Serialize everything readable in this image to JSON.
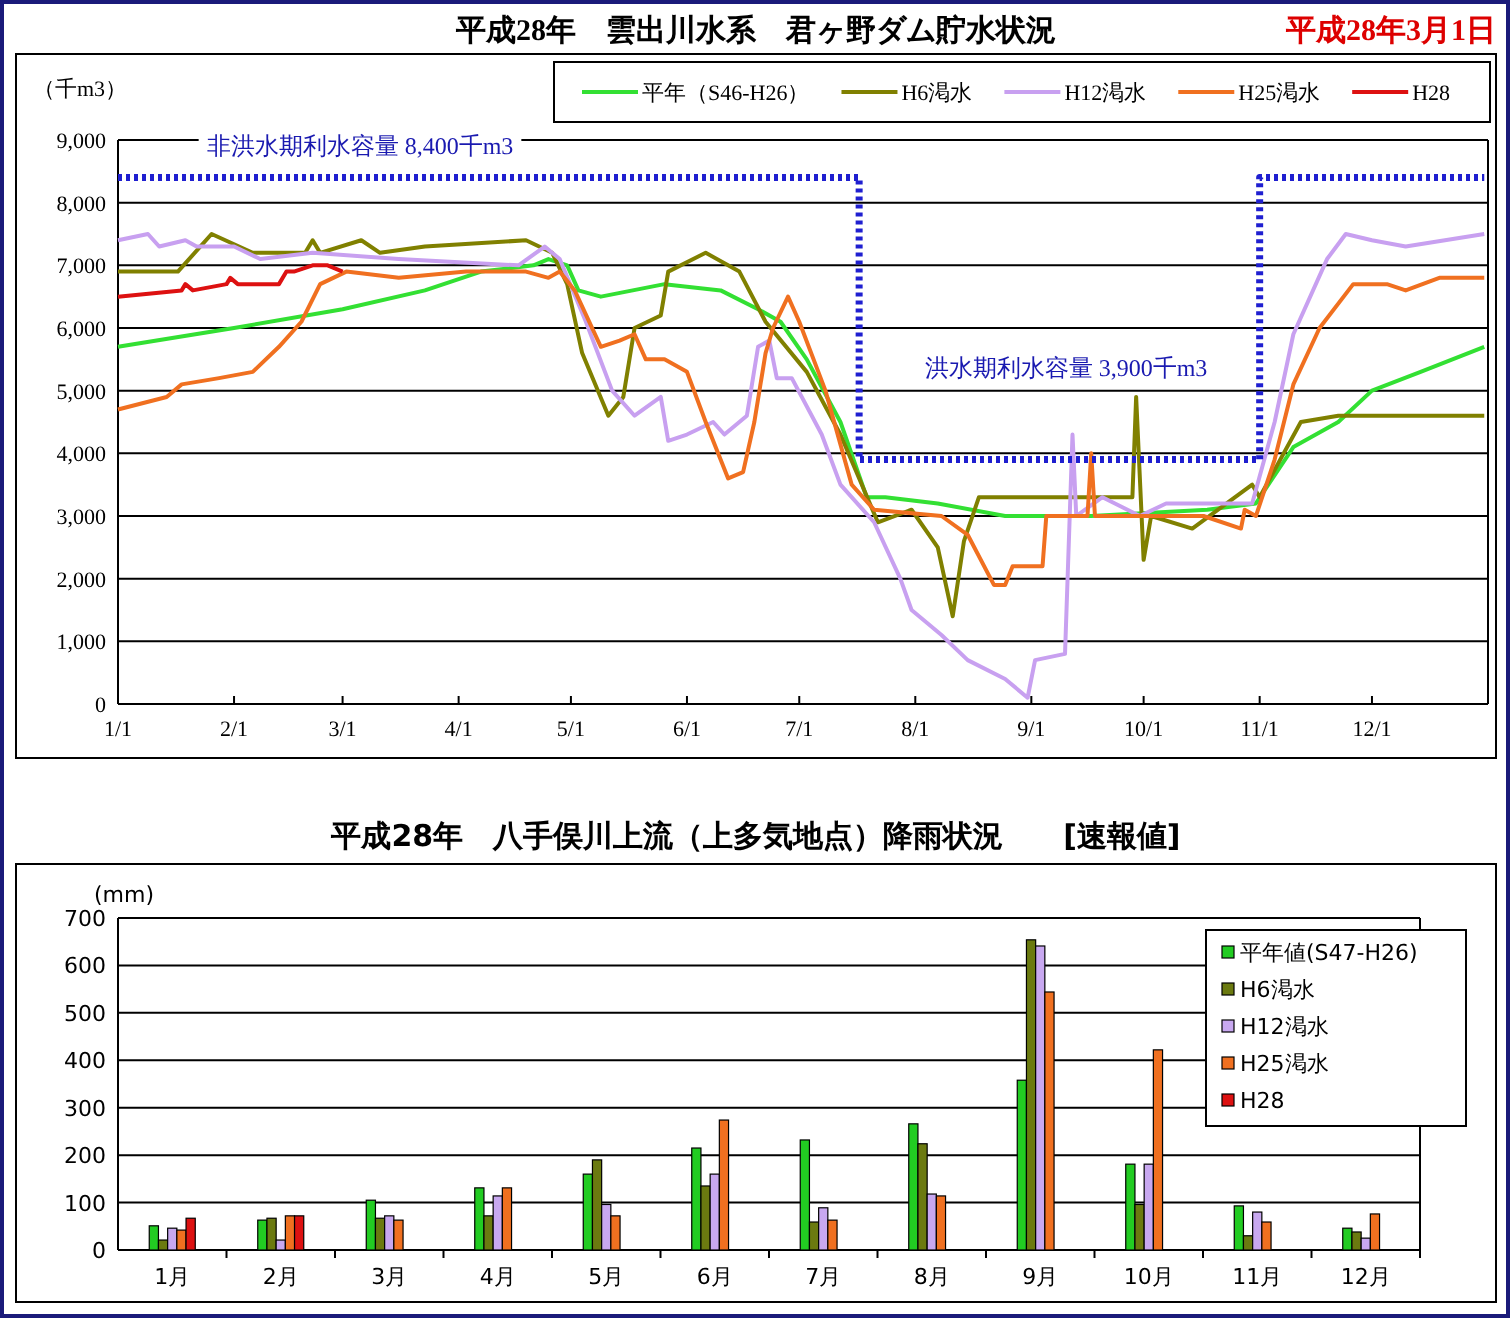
{
  "chart_data": [
    {
      "type": "line",
      "title": "平成28年　雲出川水系　君ヶ野ダム貯水状況",
      "subtitle": "平成28年3月1日",
      "ylabel": "（千m3）",
      "xlim": [
        "--01-01",
        "--12-31"
      ],
      "ylim": [
        0,
        9000
      ],
      "xticks": [
        {
          "value": "--01-01",
          "label": "1/1"
        },
        {
          "value": "--02-01",
          "label": "2/1"
        },
        {
          "value": "--03-01",
          "label": "3/1"
        },
        {
          "value": "--04-01",
          "label": "4/1"
        },
        {
          "value": "--05-01",
          "label": "5/1"
        },
        {
          "value": "--06-01",
          "label": "6/1"
        },
        {
          "value": "--07-01",
          "label": "7/1"
        },
        {
          "value": "--08-01",
          "label": "8/1"
        },
        {
          "value": "--09-01",
          "label": "9/1"
        },
        {
          "value": "--10-01",
          "label": "10/1"
        },
        {
          "value": "--11-01",
          "label": "11/1"
        },
        {
          "value": "--12-01",
          "label": "12/1"
        }
      ],
      "yticks": [
        0,
        {
          "value": 1000,
          "label": "1,000"
        },
        {
          "value": 2000,
          "label": "2,000"
        },
        {
          "value": 3000,
          "label": "3,000"
        },
        {
          "value": 4000,
          "label": "4,000"
        },
        {
          "value": 5000,
          "label": "5,000"
        },
        {
          "value": 6000,
          "label": "6,000"
        },
        {
          "value": 7000,
          "label": "7,000"
        },
        {
          "value": 8000,
          "label": "8,000"
        },
        {
          "value": 9000,
          "label": "9,000"
        }
      ],
      "grid": "y",
      "legend": "top",
      "line_style": "solid",
      "marker": "none",
      "annotations": [
        "非洪水期利水容量 8,400千m3",
        "洪水期利水容量 3,900千m3"
      ],
      "series": [
        {
          "name": "平年（S46-H26）",
          "color": "#33e033",
          "x": [
            "--01-01",
            "--02-01",
            "--03-01",
            "--03-23",
            "--04-07",
            "--04-21",
            "--04-25",
            "--04-30",
            "--05-03",
            "--05-09",
            "--05-26",
            "--06-10",
            "--06-20",
            "--06-26",
            "--07-03",
            "--07-12",
            "--07-19",
            "--07-24",
            "--08-07",
            "--08-25",
            "--09-17",
            "--10-18",
            "--10-31",
            "--11-10",
            "--11-22",
            "--12-01",
            "--12-14",
            "--12-31"
          ],
          "values": [
            5700,
            6000,
            6300,
            6600,
            6900,
            7000,
            7100,
            7000,
            6600,
            6500,
            6700,
            6600,
            6300,
            6100,
            5500,
            4500,
            3300,
            3300,
            3200,
            3000,
            3000,
            3100,
            3200,
            4100,
            4500,
            5000,
            5300,
            5700
          ]
        },
        {
          "name": "H6渇水",
          "color": "#808000",
          "x": [
            "--01-01",
            "--01-17",
            "--01-26",
            "--02-06",
            "--02-20",
            "--02-22",
            "--02-24",
            "--03-06",
            "--03-11",
            "--03-23",
            "--04-19",
            "--04-26",
            "--04-30",
            "--05-04",
            "--05-11",
            "--05-15",
            "--05-18",
            "--05-25",
            "--05-27",
            "--06-06",
            "--06-15",
            "--06-22",
            "--07-03",
            "--07-12",
            "--07-22",
            "--07-31",
            "--08-07",
            "--08-11",
            "--08-14",
            "--08-18",
            "--09-28",
            "--09-29",
            "--10-01",
            "--10-03",
            "--10-14",
            "--10-30",
            "--11-01",
            "--11-12",
            "--11-22",
            "--12-19",
            "--12-31"
          ],
          "values": [
            6900,
            6900,
            7500,
            7200,
            7200,
            7400,
            7200,
            7400,
            7200,
            7300,
            7400,
            7200,
            6700,
            5600,
            4600,
            4900,
            6000,
            6200,
            6900,
            7200,
            6900,
            6100,
            5300,
            4300,
            2900,
            3100,
            2500,
            1400,
            2600,
            3300,
            3300,
            4900,
            2300,
            3000,
            2800,
            3500,
            3300,
            4500,
            4600,
            4600,
            4600
          ]
        },
        {
          "name": "H12渇水",
          "color": "#c8a0f0",
          "x": [
            "--01-01",
            "--01-09",
            "--01-12",
            "--01-19",
            "--01-22",
            "--02-01",
            "--02-08",
            "--02-22",
            "--03-16",
            "--04-17",
            "--04-24",
            "--04-28",
            "--05-05",
            "--05-12",
            "--05-18",
            "--05-25",
            "--05-27",
            "--06-01",
            "--06-08",
            "--06-11",
            "--06-17",
            "--06-20",
            "--06-23",
            "--06-25",
            "--06-29",
            "--07-07",
            "--07-12",
            "--07-21",
            "--07-28",
            "--07-31",
            "--08-08",
            "--08-15",
            "--08-25",
            "--08-31",
            "--09-02",
            "--09-10",
            "--09-12",
            "--09-13",
            "--09-20",
            "--09-30",
            "--10-07",
            "--10-30",
            "--11-05",
            "--11-10",
            "--11-19",
            "--11-24",
            "--12-01",
            "--12-10",
            "--12-31"
          ],
          "values": [
            7400,
            7500,
            7300,
            7400,
            7300,
            7300,
            7100,
            7200,
            7100,
            7000,
            7300,
            7100,
            6100,
            5000,
            4600,
            4900,
            4200,
            4300,
            4500,
            4300,
            4600,
            5700,
            5800,
            5200,
            5200,
            4300,
            3500,
            2900,
            2000,
            1500,
            1100,
            700,
            400,
            100,
            700,
            800,
            4300,
            3000,
            3300,
            3000,
            3200,
            3200,
            4500,
            5900,
            7100,
            7500,
            7400,
            7300,
            7500
          ]
        },
        {
          "name": "H25渇水",
          "color": "#f07020",
          "x": [
            "--01-01",
            "--01-14",
            "--01-18",
            "--01-28",
            "--02-06",
            "--02-13",
            "--02-19",
            "--02-24",
            "--03-02",
            "--03-16",
            "--04-03",
            "--04-19",
            "--04-25",
            "--04-28",
            "--05-02",
            "--05-09",
            "--05-14",
            "--05-18",
            "--05-21",
            "--05-26",
            "--06-01",
            "--06-06",
            "--06-12",
            "--06-16",
            "--06-19",
            "--06-22",
            "--06-24",
            "--06-28",
            "--07-01",
            "--07-08",
            "--07-15",
            "--07-21",
            "--08-08",
            "--08-15",
            "--08-22",
            "--08-25",
            "--08-27",
            "--09-04",
            "--09-05",
            "--09-16",
            "--09-17",
            "--09-18",
            "--10-17",
            "--10-27",
            "--10-28",
            "--10-31",
            "--11-05",
            "--11-10",
            "--11-17",
            "--11-26",
            "--12-05",
            "--12-10",
            "--12-19",
            "--12-31"
          ],
          "values": [
            4700,
            4900,
            5100,
            5200,
            5300,
            5700,
            6100,
            6700,
            6900,
            6800,
            6900,
            6900,
            6800,
            6900,
            6600,
            5700,
            5800,
            5900,
            5500,
            5500,
            5300,
            4500,
            3600,
            3700,
            4500,
            5600,
            6000,
            6500,
            6100,
            5000,
            3500,
            3100,
            3000,
            2700,
            1900,
            1900,
            2200,
            2200,
            3000,
            3000,
            4000,
            3000,
            3000,
            2800,
            3100,
            3000,
            3900,
            5100,
            6000,
            6700,
            6700,
            6600,
            6800,
            6800
          ]
        },
        {
          "name": "H28",
          "color": "#dd1111",
          "x": [
            "--01-01",
            "--01-18",
            "--01-19",
            "--01-21",
            "--01-30",
            "--01-31",
            "--02-02",
            "--02-13",
            "--02-15",
            "--02-17",
            "--02-22",
            "--02-26",
            "--03-01"
          ],
          "values": [
            6500,
            6600,
            6700,
            6600,
            6700,
            6800,
            6700,
            6700,
            6900,
            6900,
            7000,
            7000,
            6900
          ]
        },
        {
          "color": "#1f1fd0",
          "line_style": "dotted",
          "x": [
            "--01-01",
            "--07-17",
            "--07-17",
            "--11-01",
            "--11-01",
            "--12-31"
          ],
          "values": [
            8400,
            8400,
            3900,
            3900,
            8400,
            8400
          ]
        }
      ]
    },
    {
      "type": "bar",
      "title": "平成28年　八手俣川上流（上多気地点）降雨状況　　[速報値]",
      "ylabel": "(mm)",
      "ylim": [
        0,
        700
      ],
      "yticks": [
        0,
        100,
        200,
        300,
        400,
        500,
        600,
        700
      ],
      "grid": "y",
      "legend": "right",
      "categories": [
        "1月",
        "2月",
        "3月",
        "4月",
        "5月",
        "6月",
        "7月",
        "8月",
        "9月",
        "10月",
        "11月",
        "12月"
      ],
      "series": [
        {
          "name": "平年値(S47-H26)",
          "color": "#22cc22",
          "values": [
            51,
            63,
            105,
            131,
            160,
            215,
            232,
            266,
            358,
            181,
            93,
            46
          ]
        },
        {
          "name": "H6渇水",
          "color": "#6b7a10",
          "values": [
            21,
            67,
            67,
            72,
            190,
            135,
            59,
            224,
            654,
            96,
            30,
            38
          ]
        },
        {
          "name": "H12渇水",
          "color": "#c8a8f0",
          "values": [
            46,
            21,
            72,
            114,
            96,
            160,
            89,
            118,
            641,
            181,
            80,
            25
          ]
        },
        {
          "name": "H25渇水",
          "color": "#f07020",
          "values": [
            42,
            72,
            63,
            131,
            72,
            274,
            63,
            114,
            544,
            422,
            59,
            76
          ]
        },
        {
          "name": "H28",
          "color": "#dd1111",
          "values": [
            67,
            72,
            null,
            null,
            null,
            null,
            null,
            null,
            null,
            null,
            null,
            null
          ]
        }
      ]
    }
  ]
}
